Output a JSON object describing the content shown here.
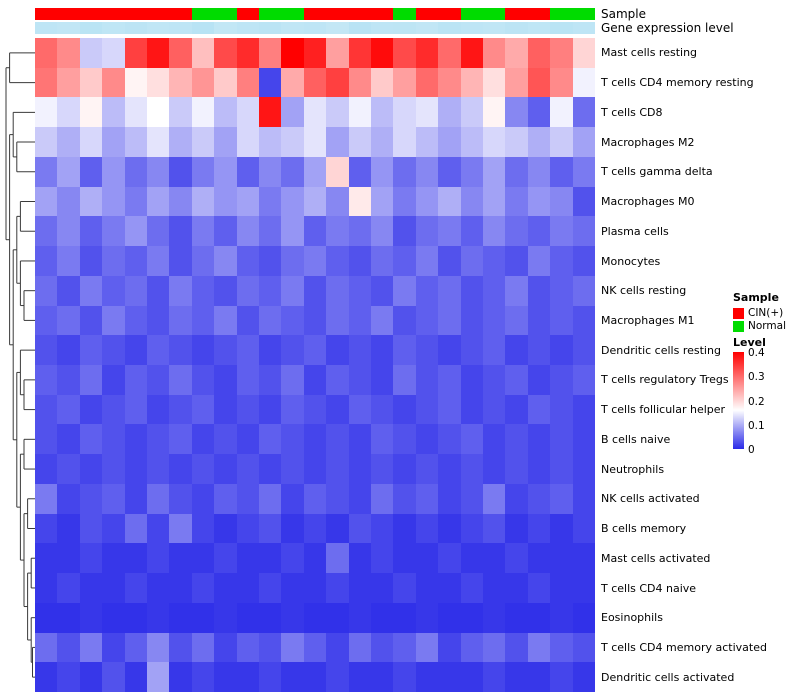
{
  "annotations": {
    "sample_label": "Sample",
    "expression_label": "Gene expression level"
  },
  "legend": {
    "sample_title": "Sample",
    "sample_items": [
      {
        "label": "CIN(+)",
        "color": "#FF0000"
      },
      {
        "label": "Normal",
        "color": "#00DC00"
      }
    ],
    "level_title": "Level",
    "level_ticks": [
      "0.4",
      "0.3",
      "0.2",
      "0.1",
      "0"
    ]
  },
  "colors": {
    "heat_low": "#2A2AE8",
    "heat_mid": "#FFFFFF",
    "heat_high": "#FF0000",
    "sample_cin": "#FF0000",
    "sample_normal": "#00DC00",
    "expr_low": "#DFF3FA",
    "expr_high": "#9CD7EF",
    "dendrogram_stroke": "#3A3A3A"
  },
  "chart_data": {
    "type": "heatmap",
    "title": "",
    "legend_position": "right",
    "rows": [
      "Mast cells resting",
      "T cells CD4 memory resting",
      "T cells CD8",
      "Macrophages M2",
      "T cells gamma delta",
      "Macrophages M0",
      "Plasma cells",
      "Monocytes",
      "NK cells resting",
      "Macrophages M1",
      "Dendritic cells resting",
      "T cells regulatory  Tregs",
      "T cells follicular helper",
      "B cells naive",
      "Neutrophils",
      "NK cells activated",
      "B cells memory",
      "Mast cells activated",
      "T cells CD4 naive",
      "Eosinophils",
      "T cells CD4 memory activated",
      "Dendritic cells activated"
    ],
    "n_cols": 25,
    "value_range": [
      0,
      0.4
    ],
    "midpoint": 0.16,
    "values": [
      [
        0.3,
        0.27,
        0.12,
        0.13,
        0.34,
        0.38,
        0.31,
        0.22,
        0.33,
        0.36,
        0.28,
        0.4,
        0.37,
        0.25,
        0.35,
        0.39,
        0.33,
        0.36,
        0.3,
        0.38,
        0.27,
        0.24,
        0.31,
        0.28,
        0.2
      ],
      [
        0.29,
        0.25,
        0.21,
        0.27,
        0.17,
        0.19,
        0.23,
        0.26,
        0.21,
        0.28,
        0.02,
        0.24,
        0.31,
        0.34,
        0.27,
        0.21,
        0.25,
        0.3,
        0.27,
        0.23,
        0.19,
        0.25,
        0.32,
        0.27,
        0.15
      ],
      [
        0.15,
        0.13,
        0.17,
        0.11,
        0.14,
        0.16,
        0.12,
        0.15,
        0.11,
        0.13,
        0.38,
        0.09,
        0.14,
        0.12,
        0.15,
        0.11,
        0.13,
        0.14,
        0.1,
        0.12,
        0.17,
        0.07,
        0.04,
        0.15,
        0.05
      ],
      [
        0.12,
        0.1,
        0.13,
        0.09,
        0.11,
        0.14,
        0.1,
        0.12,
        0.09,
        0.13,
        0.11,
        0.12,
        0.14,
        0.09,
        0.12,
        0.1,
        0.13,
        0.11,
        0.09,
        0.11,
        0.13,
        0.12,
        0.1,
        0.12,
        0.09
      ],
      [
        0.06,
        0.09,
        0.04,
        0.08,
        0.05,
        0.07,
        0.03,
        0.06,
        0.08,
        0.04,
        0.07,
        0.05,
        0.09,
        0.2,
        0.04,
        0.08,
        0.05,
        0.07,
        0.04,
        0.06,
        0.09,
        0.05,
        0.07,
        0.04,
        0.06
      ],
      [
        0.09,
        0.07,
        0.1,
        0.08,
        0.06,
        0.09,
        0.07,
        0.1,
        0.08,
        0.09,
        0.06,
        0.08,
        0.1,
        0.07,
        0.18,
        0.09,
        0.06,
        0.08,
        0.1,
        0.07,
        0.09,
        0.06,
        0.08,
        0.07,
        0.03
      ],
      [
        0.05,
        0.07,
        0.04,
        0.06,
        0.08,
        0.05,
        0.03,
        0.06,
        0.04,
        0.07,
        0.05,
        0.08,
        0.04,
        0.06,
        0.05,
        0.07,
        0.03,
        0.05,
        0.06,
        0.04,
        0.07,
        0.05,
        0.04,
        0.06,
        0.05
      ],
      [
        0.04,
        0.06,
        0.03,
        0.05,
        0.04,
        0.06,
        0.03,
        0.05,
        0.07,
        0.04,
        0.03,
        0.05,
        0.06,
        0.04,
        0.03,
        0.05,
        0.04,
        0.06,
        0.03,
        0.05,
        0.04,
        0.03,
        0.06,
        0.04,
        0.03
      ],
      [
        0.05,
        0.03,
        0.06,
        0.04,
        0.05,
        0.03,
        0.06,
        0.04,
        0.03,
        0.05,
        0.04,
        0.06,
        0.03,
        0.05,
        0.04,
        0.03,
        0.06,
        0.04,
        0.05,
        0.03,
        0.04,
        0.06,
        0.03,
        0.04,
        0.05
      ],
      [
        0.04,
        0.05,
        0.03,
        0.06,
        0.04,
        0.03,
        0.05,
        0.04,
        0.06,
        0.03,
        0.05,
        0.04,
        0.03,
        0.05,
        0.04,
        0.06,
        0.03,
        0.04,
        0.05,
        0.03,
        0.04,
        0.05,
        0.03,
        0.04,
        0.03
      ],
      [
        0.03,
        0.02,
        0.04,
        0.03,
        0.02,
        0.04,
        0.03,
        0.02,
        0.03,
        0.04,
        0.02,
        0.03,
        0.04,
        0.02,
        0.03,
        0.02,
        0.04,
        0.03,
        0.02,
        0.03,
        0.04,
        0.02,
        0.03,
        0.02,
        0.03
      ],
      [
        0.04,
        0.03,
        0.05,
        0.02,
        0.04,
        0.03,
        0.05,
        0.03,
        0.02,
        0.04,
        0.03,
        0.05,
        0.02,
        0.04,
        0.03,
        0.02,
        0.05,
        0.03,
        0.04,
        0.02,
        0.03,
        0.04,
        0.02,
        0.03,
        0.04
      ],
      [
        0.03,
        0.04,
        0.02,
        0.03,
        0.04,
        0.02,
        0.03,
        0.04,
        0.02,
        0.03,
        0.02,
        0.04,
        0.03,
        0.02,
        0.04,
        0.03,
        0.02,
        0.03,
        0.04,
        0.02,
        0.03,
        0.02,
        0.04,
        0.03,
        0.02
      ],
      [
        0.03,
        0.02,
        0.04,
        0.03,
        0.02,
        0.03,
        0.04,
        0.02,
        0.03,
        0.02,
        0.04,
        0.03,
        0.02,
        0.03,
        0.02,
        0.04,
        0.03,
        0.02,
        0.03,
        0.04,
        0.02,
        0.03,
        0.02,
        0.03,
        0.02
      ],
      [
        0.02,
        0.03,
        0.02,
        0.03,
        0.02,
        0.03,
        0.02,
        0.03,
        0.02,
        0.03,
        0.02,
        0.03,
        0.02,
        0.03,
        0.02,
        0.03,
        0.02,
        0.03,
        0.02,
        0.03,
        0.02,
        0.03,
        0.02,
        0.03,
        0.02
      ],
      [
        0.06,
        0.02,
        0.03,
        0.04,
        0.02,
        0.05,
        0.03,
        0.02,
        0.04,
        0.03,
        0.05,
        0.02,
        0.04,
        0.03,
        0.02,
        0.05,
        0.03,
        0.04,
        0.02,
        0.03,
        0.06,
        0.02,
        0.03,
        0.04,
        0.02
      ],
      [
        0.02,
        0.01,
        0.03,
        0.02,
        0.05,
        0.02,
        0.06,
        0.02,
        0.01,
        0.02,
        0.03,
        0.01,
        0.02,
        0.01,
        0.03,
        0.02,
        0.01,
        0.02,
        0.01,
        0.02,
        0.03,
        0.01,
        0.02,
        0.01,
        0.02
      ],
      [
        0.01,
        0.01,
        0.02,
        0.01,
        0.01,
        0.02,
        0.01,
        0.01,
        0.02,
        0.01,
        0.01,
        0.02,
        0.01,
        0.05,
        0.01,
        0.02,
        0.01,
        0.01,
        0.02,
        0.01,
        0.01,
        0.02,
        0.01,
        0.01,
        0.01
      ],
      [
        0.01,
        0.02,
        0.01,
        0.01,
        0.02,
        0.01,
        0.01,
        0.02,
        0.01,
        0.01,
        0.02,
        0.01,
        0.01,
        0.02,
        0.01,
        0.01,
        0.02,
        0.01,
        0.01,
        0.02,
        0.01,
        0.01,
        0.02,
        0.01,
        0.01
      ],
      [
        0.005,
        0.005,
        0.01,
        0.005,
        0.005,
        0.01,
        0.005,
        0.005,
        0.01,
        0.005,
        0.005,
        0.01,
        0.005,
        0.005,
        0.01,
        0.005,
        0.005,
        0.01,
        0.005,
        0.005,
        0.01,
        0.005,
        0.005,
        0.01,
        0.005
      ],
      [
        0.05,
        0.03,
        0.06,
        0.02,
        0.04,
        0.07,
        0.03,
        0.05,
        0.02,
        0.04,
        0.03,
        0.06,
        0.04,
        0.02,
        0.05,
        0.03,
        0.04,
        0.06,
        0.02,
        0.04,
        0.05,
        0.03,
        0.06,
        0.04,
        0.03
      ],
      [
        0.01,
        0.02,
        0.01,
        0.03,
        0.01,
        0.09,
        0.01,
        0.02,
        0.01,
        0.01,
        0.02,
        0.01,
        0.01,
        0.02,
        0.01,
        0.01,
        0.02,
        0.01,
        0.01,
        0.01,
        0.02,
        0.01,
        0.01,
        0.02,
        0.01
      ]
    ],
    "col_annotations": {
      "Sample": [
        "CIN(+)",
        "CIN(+)",
        "CIN(+)",
        "CIN(+)",
        "CIN(+)",
        "CIN(+)",
        "CIN(+)",
        "Normal",
        "Normal",
        "CIN(+)",
        "Normal",
        "Normal",
        "CIN(+)",
        "CIN(+)",
        "CIN(+)",
        "CIN(+)",
        "Normal",
        "CIN(+)",
        "CIN(+)",
        "Normal",
        "Normal",
        "CIN(+)",
        "CIN(+)",
        "Normal",
        "Normal"
      ],
      "Gene expression level": [
        0.5,
        0.45,
        0.55,
        0.48,
        0.52,
        0.46,
        0.5,
        0.58,
        0.44,
        0.5,
        0.53,
        0.47,
        0.5,
        0.42,
        0.56,
        0.49,
        0.51,
        0.45,
        0.54,
        0.5,
        0.47,
        0.52,
        0.48,
        0.55,
        0.5
      ]
    },
    "row_dendrogram": [
      [
        0,
        1
      ],
      [
        [
          2,
          [
            3,
            4
          ]
        ],
        [
          [
            [
              5,
              6
            ],
            [
              7,
              [
                8,
                9
              ]
            ]
          ],
          [
            [
              10,
              [
                11,
                12
              ]
            ],
            [
              [
                13,
                14
              ],
              [
                [
                  15,
                  16
                ],
                [
                  [
                    17,
                    18
                  ],
                  [
                    19,
                    [
                      20,
                      21
                    ]
                  ]
                ]
              ]
            ]
          ]
        ]
      ]
    ]
  }
}
